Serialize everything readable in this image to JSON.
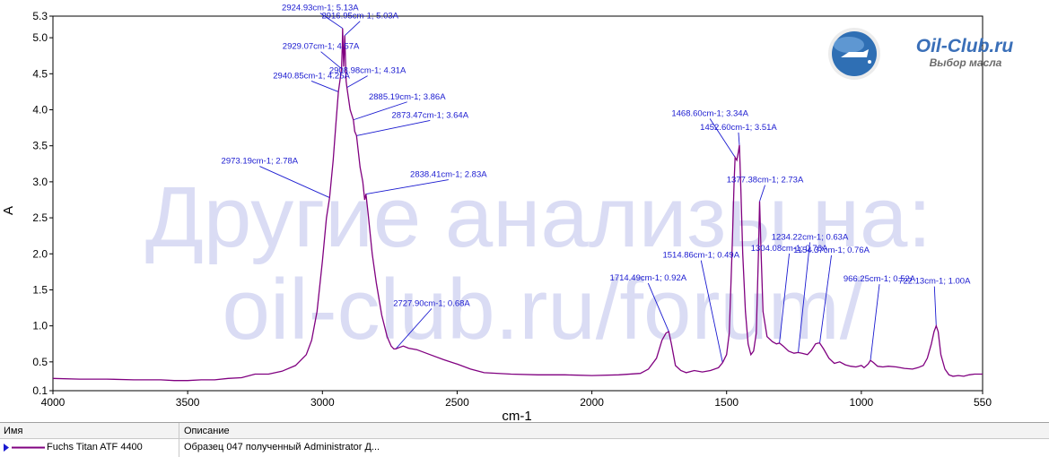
{
  "chart_data": {
    "type": "line",
    "xlabel": "cm-1",
    "ylabel": "A",
    "xlim": [
      4000,
      550
    ],
    "ylim": [
      0.1,
      5.3
    ],
    "x_ticks": [
      4000,
      3500,
      3000,
      2500,
      2000,
      1500,
      1000,
      550
    ],
    "y_ticks": [
      0.1,
      0.5,
      1.0,
      1.5,
      2.0,
      2.5,
      3.0,
      3.5,
      4.0,
      4.5,
      5.0,
      5.3
    ],
    "y_tick_labels": [
      "0.1",
      "0.5",
      "1.0",
      "1.5",
      "2.0",
      "2.5",
      "3.0",
      "3.5",
      "4.0",
      "4.5",
      "5.0",
      "5.3"
    ],
    "series": [
      {
        "name": "Fuchs Titan ATF 4400",
        "color": "#800080",
        "points": [
          [
            4000,
            0.27
          ],
          [
            3900,
            0.26
          ],
          [
            3800,
            0.26
          ],
          [
            3700,
            0.25
          ],
          [
            3600,
            0.25
          ],
          [
            3550,
            0.24
          ],
          [
            3500,
            0.24
          ],
          [
            3450,
            0.25
          ],
          [
            3400,
            0.25
          ],
          [
            3350,
            0.27
          ],
          [
            3300,
            0.28
          ],
          [
            3250,
            0.33
          ],
          [
            3200,
            0.33
          ],
          [
            3150,
            0.37
          ],
          [
            3100,
            0.45
          ],
          [
            3060,
            0.6
          ],
          [
            3040,
            0.8
          ],
          [
            3020,
            1.2
          ],
          [
            3000,
            1.9
          ],
          [
            2985,
            2.5
          ],
          [
            2973.19,
            2.78
          ],
          [
            2960,
            3.3
          ],
          [
            2950,
            3.8
          ],
          [
            2940.85,
            4.25
          ],
          [
            2935,
            4.4
          ],
          [
            2929.07,
            4.57
          ],
          [
            2926,
            4.9
          ],
          [
            2924.93,
            5.13
          ],
          [
            2921,
            4.6
          ],
          [
            2916.95,
            5.03
          ],
          [
            2912,
            4.4
          ],
          [
            2908.98,
            4.31
          ],
          [
            2897,
            4.0
          ],
          [
            2885.19,
            3.86
          ],
          [
            2880,
            3.7
          ],
          [
            2873.47,
            3.64
          ],
          [
            2860,
            3.2
          ],
          [
            2850,
            3.0
          ],
          [
            2843,
            2.75
          ],
          [
            2838.41,
            2.83
          ],
          [
            2830,
            2.55
          ],
          [
            2815,
            2.0
          ],
          [
            2800,
            1.6
          ],
          [
            2780,
            1.15
          ],
          [
            2760,
            0.85
          ],
          [
            2745,
            0.72
          ],
          [
            2735,
            0.68
          ],
          [
            2727.9,
            0.68
          ],
          [
            2715,
            0.7
          ],
          [
            2700,
            0.72
          ],
          [
            2680,
            0.69
          ],
          [
            2650,
            0.67
          ],
          [
            2600,
            0.6
          ],
          [
            2550,
            0.53
          ],
          [
            2500,
            0.47
          ],
          [
            2450,
            0.4
          ],
          [
            2400,
            0.35
          ],
          [
            2300,
            0.33
          ],
          [
            2200,
            0.32
          ],
          [
            2100,
            0.32
          ],
          [
            2000,
            0.31
          ],
          [
            1900,
            0.32
          ],
          [
            1820,
            0.34
          ],
          [
            1790,
            0.4
          ],
          [
            1760,
            0.55
          ],
          [
            1740,
            0.8
          ],
          [
            1725,
            0.9
          ],
          [
            1714.49,
            0.92
          ],
          [
            1705,
            0.75
          ],
          [
            1690,
            0.45
          ],
          [
            1670,
            0.38
          ],
          [
            1650,
            0.35
          ],
          [
            1620,
            0.38
          ],
          [
            1590,
            0.36
          ],
          [
            1560,
            0.38
          ],
          [
            1530,
            0.42
          ],
          [
            1514.86,
            0.49
          ],
          [
            1500,
            0.6
          ],
          [
            1490,
            0.9
          ],
          [
            1480,
            2.0
          ],
          [
            1472,
            3.0
          ],
          [
            1468.6,
            3.34
          ],
          [
            1462,
            3.3
          ],
          [
            1456,
            3.42
          ],
          [
            1452.6,
            3.51
          ],
          [
            1447,
            2.9
          ],
          [
            1440,
            2.0
          ],
          [
            1430,
            1.2
          ],
          [
            1420,
            0.75
          ],
          [
            1410,
            0.6
          ],
          [
            1400,
            0.65
          ],
          [
            1390,
            0.9
          ],
          [
            1382,
            2.0
          ],
          [
            1377.38,
            2.73
          ],
          [
            1372,
            2.0
          ],
          [
            1365,
            1.2
          ],
          [
            1350,
            0.85
          ],
          [
            1330,
            0.78
          ],
          [
            1315,
            0.75
          ],
          [
            1304.08,
            0.76
          ],
          [
            1290,
            0.72
          ],
          [
            1270,
            0.65
          ],
          [
            1250,
            0.62
          ],
          [
            1234.22,
            0.63
          ],
          [
            1220,
            0.62
          ],
          [
            1200,
            0.6
          ],
          [
            1185,
            0.66
          ],
          [
            1170,
            0.75
          ],
          [
            1160,
            0.76
          ],
          [
            1154.37,
            0.76
          ],
          [
            1140,
            0.68
          ],
          [
            1120,
            0.55
          ],
          [
            1100,
            0.48
          ],
          [
            1080,
            0.5
          ],
          [
            1060,
            0.46
          ],
          [
            1040,
            0.44
          ],
          [
            1020,
            0.43
          ],
          [
            1000,
            0.45
          ],
          [
            990,
            0.42
          ],
          [
            975,
            0.47
          ],
          [
            966.25,
            0.52
          ],
          [
            955,
            0.49
          ],
          [
            940,
            0.44
          ],
          [
            920,
            0.43
          ],
          [
            900,
            0.44
          ],
          [
            870,
            0.43
          ],
          [
            840,
            0.41
          ],
          [
            810,
            0.4
          ],
          [
            790,
            0.42
          ],
          [
            770,
            0.45
          ],
          [
            755,
            0.55
          ],
          [
            740,
            0.75
          ],
          [
            730,
            0.92
          ],
          [
            722.13,
            1.0
          ],
          [
            715,
            0.92
          ],
          [
            705,
            0.6
          ],
          [
            690,
            0.4
          ],
          [
            675,
            0.32
          ],
          [
            660,
            0.3
          ],
          [
            640,
            0.31
          ],
          [
            620,
            0.3
          ],
          [
            600,
            0.32
          ],
          [
            580,
            0.33
          ],
          [
            560,
            0.33
          ],
          [
            550,
            0.33
          ]
        ]
      }
    ],
    "annotations": [
      {
        "text": "2924.93cm-1; 5.13A",
        "x": 2924.93,
        "y": 5.13
      },
      {
        "text": "2916.95cm-1; 5.03A",
        "x": 2916.95,
        "y": 5.03
      },
      {
        "text": "2929.07cm-1; 4.57A",
        "x": 2929.07,
        "y": 4.57
      },
      {
        "text": "2908.98cm-1; 4.31A",
        "x": 2908.98,
        "y": 4.31
      },
      {
        "text": "2885.19cm-1; 3.86A",
        "x": 2885.19,
        "y": 3.86
      },
      {
        "text": "2940.85cm-1; 4.25A",
        "x": 2940.85,
        "y": 4.25
      },
      {
        "text": "2873.47cm-1; 3.64A",
        "x": 2873.47,
        "y": 3.64
      },
      {
        "text": "2838.41cm-1; 2.83A",
        "x": 2838.41,
        "y": 2.83
      },
      {
        "text": "2973.19cm-1; 2.78A",
        "x": 2973.19,
        "y": 2.78
      },
      {
        "text": "2727.90cm-1; 0.68A",
        "x": 2727.9,
        "y": 0.68
      },
      {
        "text": "1452.60cm-1; 3.51A",
        "x": 1452.6,
        "y": 3.51
      },
      {
        "text": "1468.60cm-1; 3.34A",
        "x": 1468.6,
        "y": 3.34
      },
      {
        "text": "1377.38cm-1; 2.73A",
        "x": 1377.38,
        "y": 2.73
      },
      {
        "text": "1304.08cm-1; 0.76A",
        "x": 1304.08,
        "y": 0.76
      },
      {
        "text": "1234.22cm-1; 0.63A",
        "x": 1234.22,
        "y": 0.63
      },
      {
        "text": "1514.86cm-1; 0.49A",
        "x": 1514.86,
        "y": 0.49
      },
      {
        "text": "1154.37cm-1; 0.76A",
        "x": 1154.37,
        "y": 0.76
      },
      {
        "text": "1714.49cm-1; 0.92A",
        "x": 1714.49,
        "y": 0.92
      },
      {
        "text": "966.25cm-1; 0.52A",
        "x": 966.25,
        "y": 0.52
      },
      {
        "text": "722.13cm-1; 1.00A",
        "x": 722.13,
        "y": 1.0
      }
    ]
  },
  "watermark": {
    "line1": "Другие анализы на:",
    "line2": "oil-club.ru/forum/"
  },
  "logo": {
    "text": "Oil-Club.ru",
    "subtitle": "Выбор масла",
    "color": "#3a6fb8"
  },
  "legend_table": {
    "headers": {
      "name": "Имя",
      "description": "Описание"
    },
    "rows": [
      {
        "name": "Fuchs Titan ATF 4400",
        "description": "Образец 047 полученный Administrator Д..."
      }
    ],
    "line_color": "#800080"
  }
}
